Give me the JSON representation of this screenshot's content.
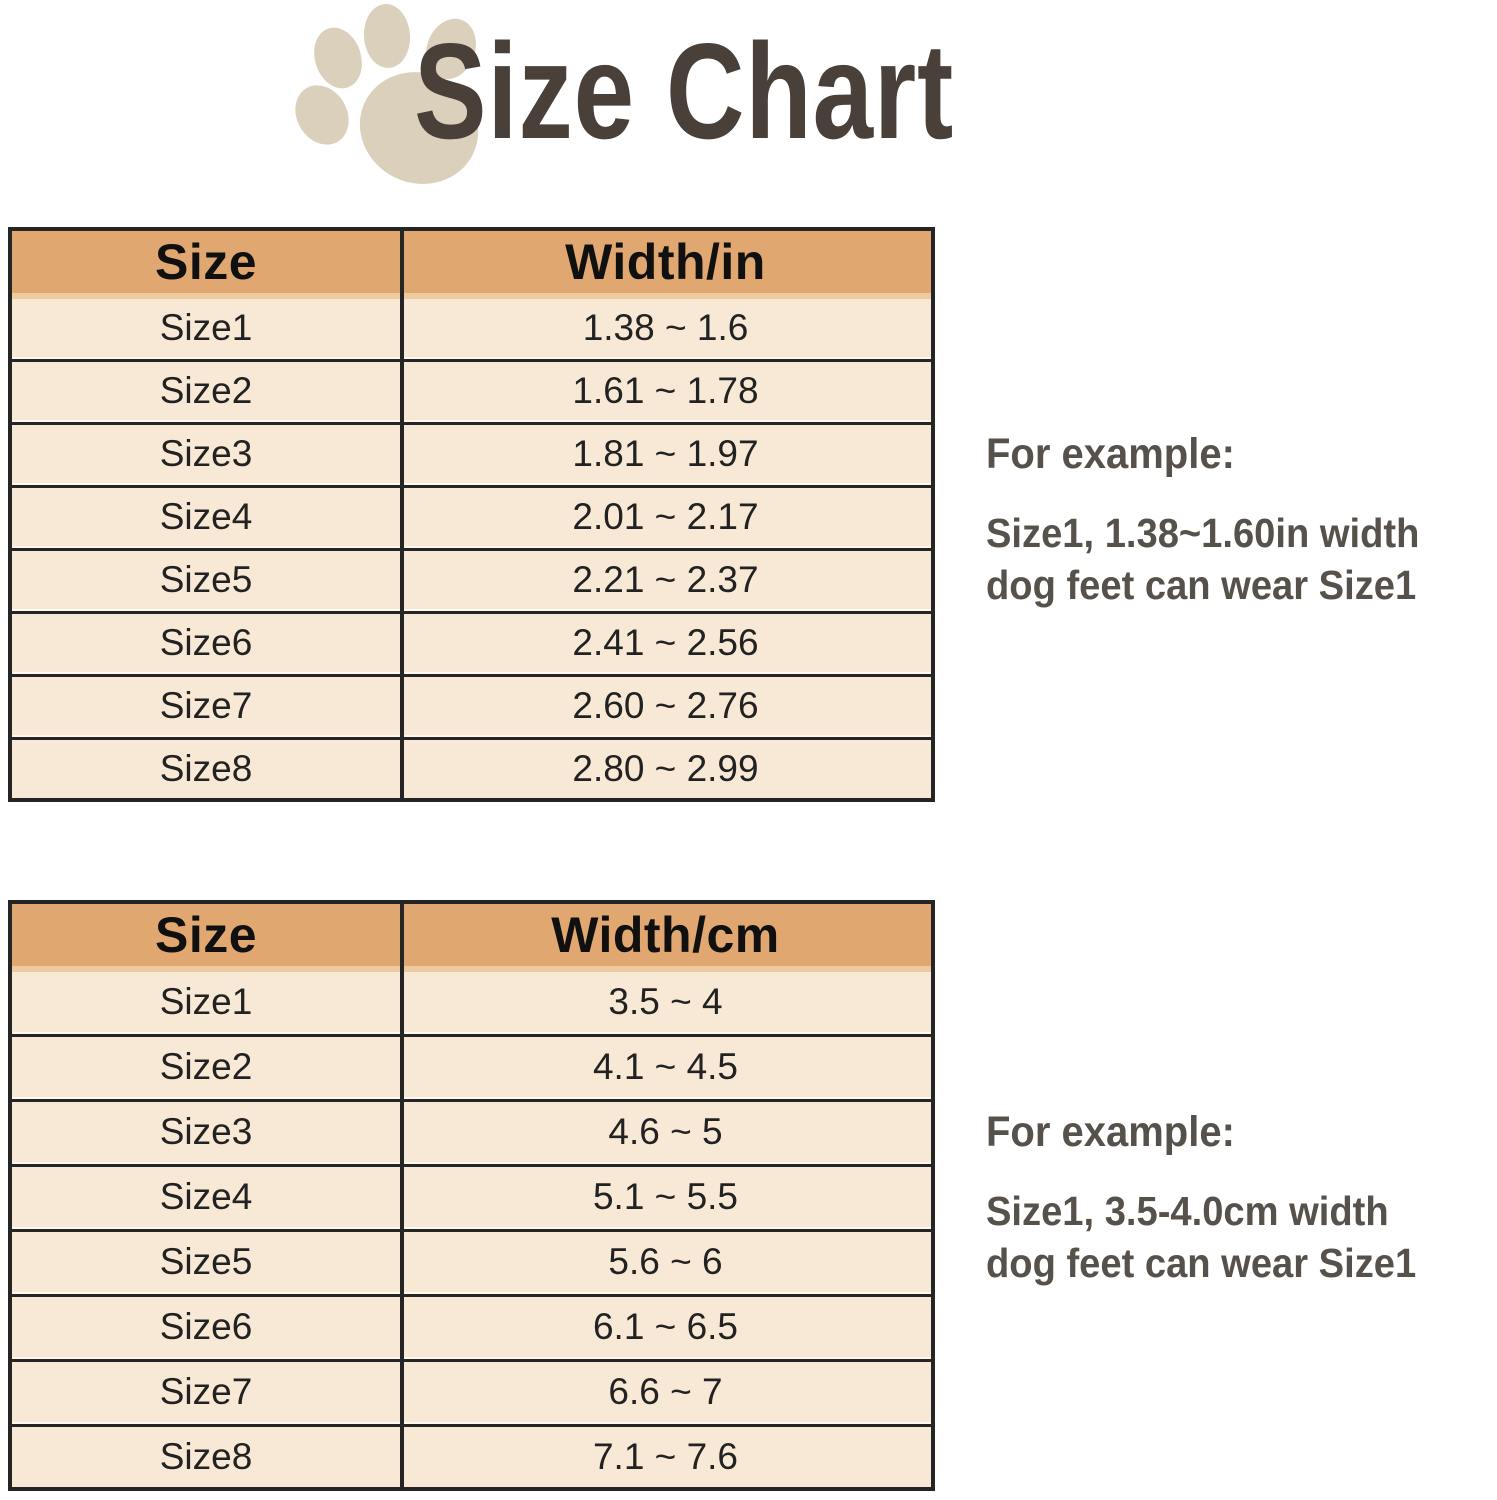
{
  "title": "Size Chart",
  "icons": {
    "paw": "paw-print"
  },
  "colors": {
    "header_bg": "#e1a770",
    "header_strip": "#eeca9f",
    "row_bg": "#f8e9d6",
    "separator_light": "#fef8ee",
    "border_dark": "#252525",
    "title_text": "#4a403a",
    "table_text": "#222222",
    "example_text": "#57514b",
    "paw_fill": "#dbd0bb",
    "background": "#ffffff"
  },
  "chart_data": [
    {
      "type": "table",
      "title": "Size Chart (inches)",
      "columns": [
        "Size",
        "Width/in"
      ],
      "rows": [
        [
          "Size1",
          "1.38 ~ 1.6"
        ],
        [
          "Size2",
          "1.61 ~ 1.78"
        ],
        [
          "Size3",
          "1.81 ~ 1.97"
        ],
        [
          "Size4",
          "2.01 ~ 2.17"
        ],
        [
          "Size5",
          "2.21 ~ 2.37"
        ],
        [
          "Size6",
          "2.41 ~ 2.56"
        ],
        [
          "Size7",
          "2.60 ~ 2.76"
        ],
        [
          "Size8",
          "2.80 ~ 2.99"
        ]
      ]
    },
    {
      "type": "table",
      "title": "Size Chart (centimeters)",
      "columns": [
        "Size",
        "Width/cm"
      ],
      "rows": [
        [
          "Size1",
          "3.5 ~ 4"
        ],
        [
          "Size2",
          "4.1 ~ 4.5"
        ],
        [
          "Size3",
          "4.6 ~ 5"
        ],
        [
          "Size4",
          "5.1 ~ 5.5"
        ],
        [
          "Size5",
          "5.6 ~ 6"
        ],
        [
          "Size6",
          "6.1 ~ 6.5"
        ],
        [
          "Size7",
          "6.6 ~ 7"
        ],
        [
          "Size8",
          "7.1 ~ 7.6"
        ]
      ]
    }
  ],
  "examples": [
    {
      "heading": "For example:",
      "lines": [
        "Size1, 1.38~1.60in width",
        "dog feet can wear Size1"
      ]
    },
    {
      "heading": "For example:",
      "lines": [
        "Size1, 3.5-4.0cm width",
        "dog feet can wear Size1"
      ]
    }
  ]
}
